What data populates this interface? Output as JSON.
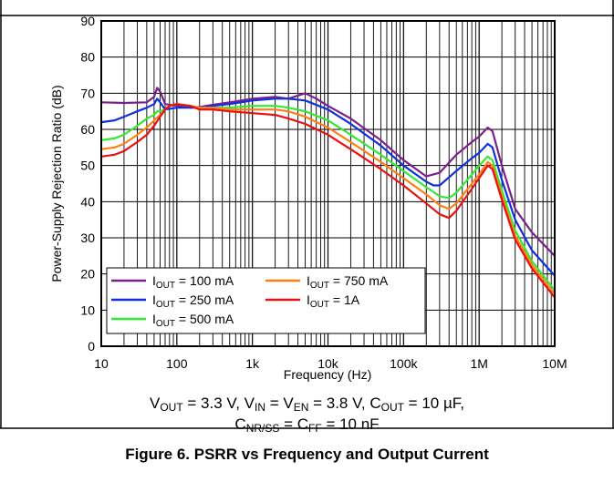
{
  "chart_data": {
    "type": "line",
    "xscale": "log",
    "xlim": [
      10,
      10000000
    ],
    "ylim": [
      0,
      90
    ],
    "xlabel": "Frequency (Hz)",
    "ylabel": "Power-Supply Rejection Ratio (dB)",
    "xtick_labels": [
      "10",
      "100",
      "1k",
      "10k",
      "100k",
      "1M",
      "10M"
    ],
    "ytick_labels": [
      "0",
      "10",
      "20",
      "30",
      "40",
      "50",
      "60",
      "70",
      "80",
      "90"
    ],
    "grid": true,
    "legend_position": "bottom-left",
    "series": [
      {
        "name": "IOUT = 100 mA",
        "label_main": "I",
        "label_sub": "OUT",
        "label_rest": " = 100 mA",
        "color": "#7b1f8c",
        "x": [
          10,
          20,
          40,
          50,
          55,
          60,
          70,
          100,
          150,
          200,
          300,
          500,
          1000,
          2000,
          3000,
          5000,
          7000,
          10000,
          20000,
          50000,
          100000,
          200000,
          300000,
          500000,
          800000,
          1000000,
          1300000,
          1500000,
          2000000,
          3000000,
          5000000,
          10000000
        ],
        "y": [
          67.5,
          67.3,
          67.5,
          69.0,
          71.5,
          70.5,
          67.0,
          66.5,
          66.0,
          66.2,
          66.8,
          67.5,
          68.5,
          69.0,
          68.5,
          70.0,
          68.5,
          66.5,
          63.0,
          57.0,
          51.5,
          47.0,
          48.0,
          53.0,
          56.5,
          58.0,
          60.5,
          59.5,
          50.0,
          38.0,
          31.5,
          25.0
        ]
      },
      {
        "name": "IOUT = 250 mA",
        "label_main": "I",
        "label_sub": "OUT",
        "label_rest": " = 250 mA",
        "color": "#1030e0",
        "x": [
          10,
          15,
          20,
          30,
          40,
          50,
          55,
          60,
          70,
          100,
          150,
          200,
          300,
          500,
          1000,
          2000,
          3000,
          5000,
          10000,
          20000,
          50000,
          100000,
          200000,
          250000,
          300000,
          500000,
          800000,
          1000000,
          1300000,
          1500000,
          2000000,
          3000000,
          5000000,
          10000000
        ],
        "y": [
          62.0,
          62.5,
          63.5,
          65.0,
          66.0,
          67.0,
          68.5,
          67.5,
          65.5,
          66.0,
          66.0,
          66.0,
          66.5,
          67.0,
          68.0,
          68.5,
          68.5,
          68.0,
          65.5,
          61.5,
          55.5,
          50.0,
          45.5,
          44.5,
          44.5,
          48.5,
          52.0,
          53.5,
          56.0,
          55.0,
          46.0,
          35.0,
          26.5,
          19.5
        ]
      },
      {
        "name": "IOUT = 500 mA",
        "label_main": "I",
        "label_sub": "OUT",
        "label_rest": " = 500 mA",
        "color": "#33e833",
        "x": [
          10,
          15,
          20,
          30,
          40,
          50,
          55,
          60,
          70,
          80,
          100,
          150,
          200,
          300,
          500,
          1000,
          2000,
          3000,
          5000,
          10000,
          20000,
          50000,
          100000,
          200000,
          300000,
          400000,
          500000,
          800000,
          1000000,
          1300000,
          1500000,
          2000000,
          3000000,
          5000000,
          10000000
        ],
        "y": [
          57.0,
          57.5,
          58.5,
          61.0,
          63.0,
          64.0,
          65.0,
          65.0,
          65.5,
          66.5,
          67.0,
          66.5,
          66.0,
          66.0,
          66.0,
          66.5,
          66.5,
          66.0,
          65.0,
          62.5,
          58.5,
          53.0,
          48.5,
          44.0,
          41.5,
          41.0,
          42.5,
          47.5,
          50.0,
          52.5,
          51.5,
          43.0,
          32.0,
          23.5,
          15.5
        ]
      },
      {
        "name": "IOUT = 750 mA",
        "label_main": "I",
        "label_sub": "OUT",
        "label_rest": " = 750 mA",
        "color": "#ff7f14",
        "x": [
          10,
          15,
          20,
          30,
          40,
          50,
          60,
          70,
          80,
          100,
          150,
          200,
          300,
          500,
          1000,
          2000,
          3000,
          5000,
          10000,
          20000,
          50000,
          100000,
          200000,
          300000,
          400000,
          500000,
          800000,
          1000000,
          1300000,
          1500000,
          2000000,
          3000000,
          5000000,
          10000000
        ],
        "y": [
          54.5,
          55.0,
          56.0,
          58.5,
          60.5,
          62.5,
          64.0,
          65.5,
          66.5,
          67.0,
          66.5,
          66.0,
          66.0,
          65.5,
          65.5,
          65.5,
          65.0,
          63.5,
          60.5,
          56.5,
          51.0,
          46.5,
          42.0,
          39.0,
          38.0,
          39.5,
          45.0,
          47.5,
          51.0,
          50.0,
          41.5,
          30.5,
          22.5,
          14.5
        ]
      },
      {
        "name": "IOUT = 1A",
        "label_main": "I",
        "label_sub": "OUT",
        "label_rest": " = 1A",
        "color": "#e81010",
        "x": [
          10,
          15,
          20,
          30,
          40,
          50,
          60,
          70,
          80,
          100,
          150,
          200,
          300,
          500,
          1000,
          2000,
          3000,
          5000,
          10000,
          20000,
          50000,
          100000,
          200000,
          300000,
          400000,
          500000,
          800000,
          1000000,
          1300000,
          1500000,
          2000000,
          3000000,
          5000000,
          10000000
        ],
        "y": [
          52.5,
          53.0,
          54.0,
          56.5,
          58.5,
          61.0,
          63.5,
          65.5,
          66.5,
          67.0,
          66.5,
          65.5,
          65.5,
          65.0,
          64.5,
          64.0,
          63.0,
          61.5,
          58.5,
          54.5,
          49.0,
          44.5,
          39.5,
          36.5,
          35.5,
          37.5,
          43.5,
          46.5,
          50.0,
          49.0,
          40.5,
          29.5,
          21.5,
          13.5
        ]
      }
    ]
  },
  "conditions": {
    "line1": [
      {
        "t": "V"
      },
      {
        "sub": "OUT"
      },
      {
        "t": " = 3.3 V, V"
      },
      {
        "sub": "IN"
      },
      {
        "t": " = V"
      },
      {
        "sub": "EN"
      },
      {
        "t": " = 3.8 V, C"
      },
      {
        "sub": "OUT"
      },
      {
        "t": " = 10 µF,"
      }
    ],
    "line2": [
      {
        "t": "C"
      },
      {
        "sub": "NR/SS"
      },
      {
        "t": " = C"
      },
      {
        "sub": "FF"
      },
      {
        "t": " = 10 nF"
      }
    ]
  },
  "figure_title": "Figure 6. PSRR vs Frequency and Output Current"
}
